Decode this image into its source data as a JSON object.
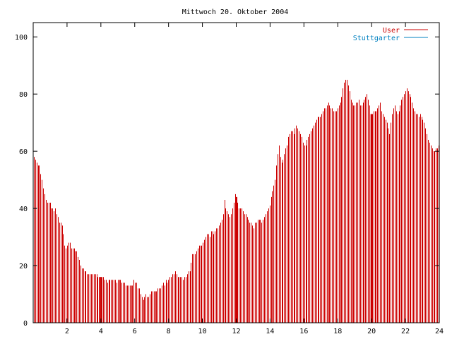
{
  "chart_data": {
    "type": "bar",
    "title": "Mittwoch 20. Oktober 2004",
    "xlabel": "",
    "ylabel": "",
    "xlim": [
      0,
      24
    ],
    "ylim": [
      0,
      105
    ],
    "x_ticks": [
      2,
      4,
      6,
      8,
      10,
      12,
      14,
      16,
      18,
      20,
      22,
      24
    ],
    "y_ticks": [
      0,
      20,
      40,
      60,
      80,
      100
    ],
    "legend_position": "top-right",
    "series": [
      {
        "name": "User",
        "color": "#cc0000",
        "values": [
          58,
          57,
          56,
          55,
          55,
          52,
          50,
          47,
          45,
          43,
          42,
          42,
          42,
          40,
          40,
          39,
          40,
          38,
          37,
          35,
          35,
          34,
          31,
          27,
          26,
          27,
          28,
          28,
          26,
          26,
          26,
          25,
          25,
          23,
          22,
          20,
          19,
          19,
          18,
          18,
          17,
          17,
          17,
          17,
          17,
          17,
          17,
          17,
          16,
          16,
          16,
          16,
          16,
          15,
          15,
          14,
          15,
          15,
          15,
          15,
          15,
          15,
          14,
          15,
          15,
          15,
          14,
          14,
          14,
          13,
          13,
          13,
          13,
          13,
          13,
          15,
          14,
          14,
          12,
          12,
          10,
          9,
          8,
          9,
          10,
          9,
          9,
          10,
          11,
          11,
          11,
          11,
          11,
          12,
          12,
          12,
          13,
          14,
          13,
          15,
          14,
          15,
          16,
          16,
          17,
          17,
          18,
          17,
          16,
          16,
          16,
          16,
          15,
          16,
          16,
          17,
          18,
          18,
          21,
          24,
          24,
          24,
          25,
          26,
          27,
          27,
          27,
          28,
          29,
          30,
          31,
          31,
          30,
          32,
          32,
          31,
          32,
          33,
          33,
          34,
          35,
          36,
          38,
          43,
          40,
          39,
          38,
          37,
          38,
          40,
          42,
          45,
          44,
          42,
          40,
          40,
          40,
          39,
          38,
          38,
          37,
          36,
          35,
          35,
          34,
          33,
          35,
          35,
          36,
          36,
          36,
          35,
          36,
          37,
          38,
          39,
          40,
          41,
          44,
          46,
          48,
          50,
          55,
          59,
          62,
          58,
          56,
          57,
          59,
          61,
          62,
          65,
          66,
          67,
          67,
          66,
          68,
          69,
          68,
          67,
          66,
          65,
          63,
          62,
          62,
          64,
          65,
          66,
          67,
          68,
          69,
          70,
          71,
          72,
          72,
          72,
          73,
          74,
          75,
          75,
          76,
          77,
          76,
          75,
          75,
          74,
          74,
          74,
          75,
          76,
          77,
          79,
          82,
          84,
          85,
          85,
          83,
          81,
          78,
          77,
          76,
          76,
          77,
          77,
          78,
          76,
          76,
          77,
          78,
          79,
          80,
          78,
          76,
          73,
          73,
          74,
          74,
          74,
          75,
          76,
          77,
          74,
          73,
          72,
          71,
          70,
          68,
          66,
          70,
          73,
          75,
          76,
          74,
          73,
          74,
          76,
          78,
          79,
          80,
          81,
          82,
          81,
          80,
          79,
          77,
          75,
          74,
          73,
          73,
          72,
          73,
          72,
          71,
          70,
          68,
          66,
          64,
          63,
          62,
          61,
          60,
          60,
          61,
          61,
          62
        ]
      },
      {
        "name": "Stuttgarter",
        "color": "#0080c0",
        "values": []
      }
    ],
    "highlighted_x": [
      4,
      12,
      20
    ]
  }
}
